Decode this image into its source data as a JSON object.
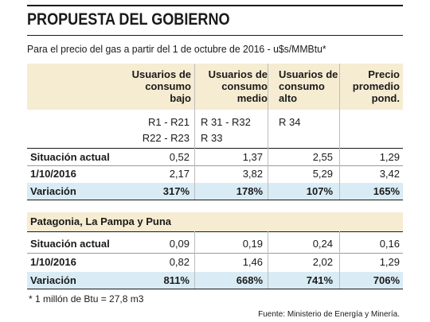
{
  "title": "PROPUESTA DEL GOBIERNO",
  "subtitle": "Para el precio del gas a partir del 1 de octubre de 2016 - u$s/MMBtu*",
  "columns": [
    {
      "line1": "Usuarios de",
      "line2": "consumo",
      "line3": "bajo",
      "codes1": "R1 - R21",
      "codes2": "R22 - R23"
    },
    {
      "line1": "Usuarios de",
      "line2": "consumo",
      "line3": "medio",
      "codes1": "R 31 - R32",
      "codes2": "R 33"
    },
    {
      "line1": "Usuarios de",
      "line2": "consumo",
      "line3": "alto",
      "codes1": "R 34",
      "codes2": ""
    },
    {
      "line1": "Precio",
      "line2": "promedio",
      "line3": "pond.",
      "codes1": "",
      "codes2": ""
    }
  ],
  "section1": {
    "rows": [
      {
        "label": "Situación actual",
        "values": [
          "0,52",
          "1,37",
          "2,55",
          "1,29"
        ]
      },
      {
        "label": "1/10/2016",
        "values": [
          "2,17",
          "3,82",
          "5,29",
          "3,42"
        ]
      },
      {
        "label": "Variación",
        "values": [
          "317%",
          "178%",
          "107%",
          "165%"
        ]
      }
    ]
  },
  "section2": {
    "heading": "Patagonia, La Pampa y Puna",
    "rows": [
      {
        "label": "Situación actual",
        "values": [
          "0,09",
          "0,19",
          "0,24",
          "0,16"
        ]
      },
      {
        "label": "1/10/2016",
        "values": [
          "0,82",
          "1,46",
          "2,02",
          "1,29"
        ]
      },
      {
        "label": "Variación",
        "values": [
          "811%",
          "668%",
          "741%",
          "706%"
        ]
      }
    ]
  },
  "footnote": "* 1 millón de Btu = 27,8 m3",
  "source": "Fuente: Ministerio de Energía y Minería."
}
